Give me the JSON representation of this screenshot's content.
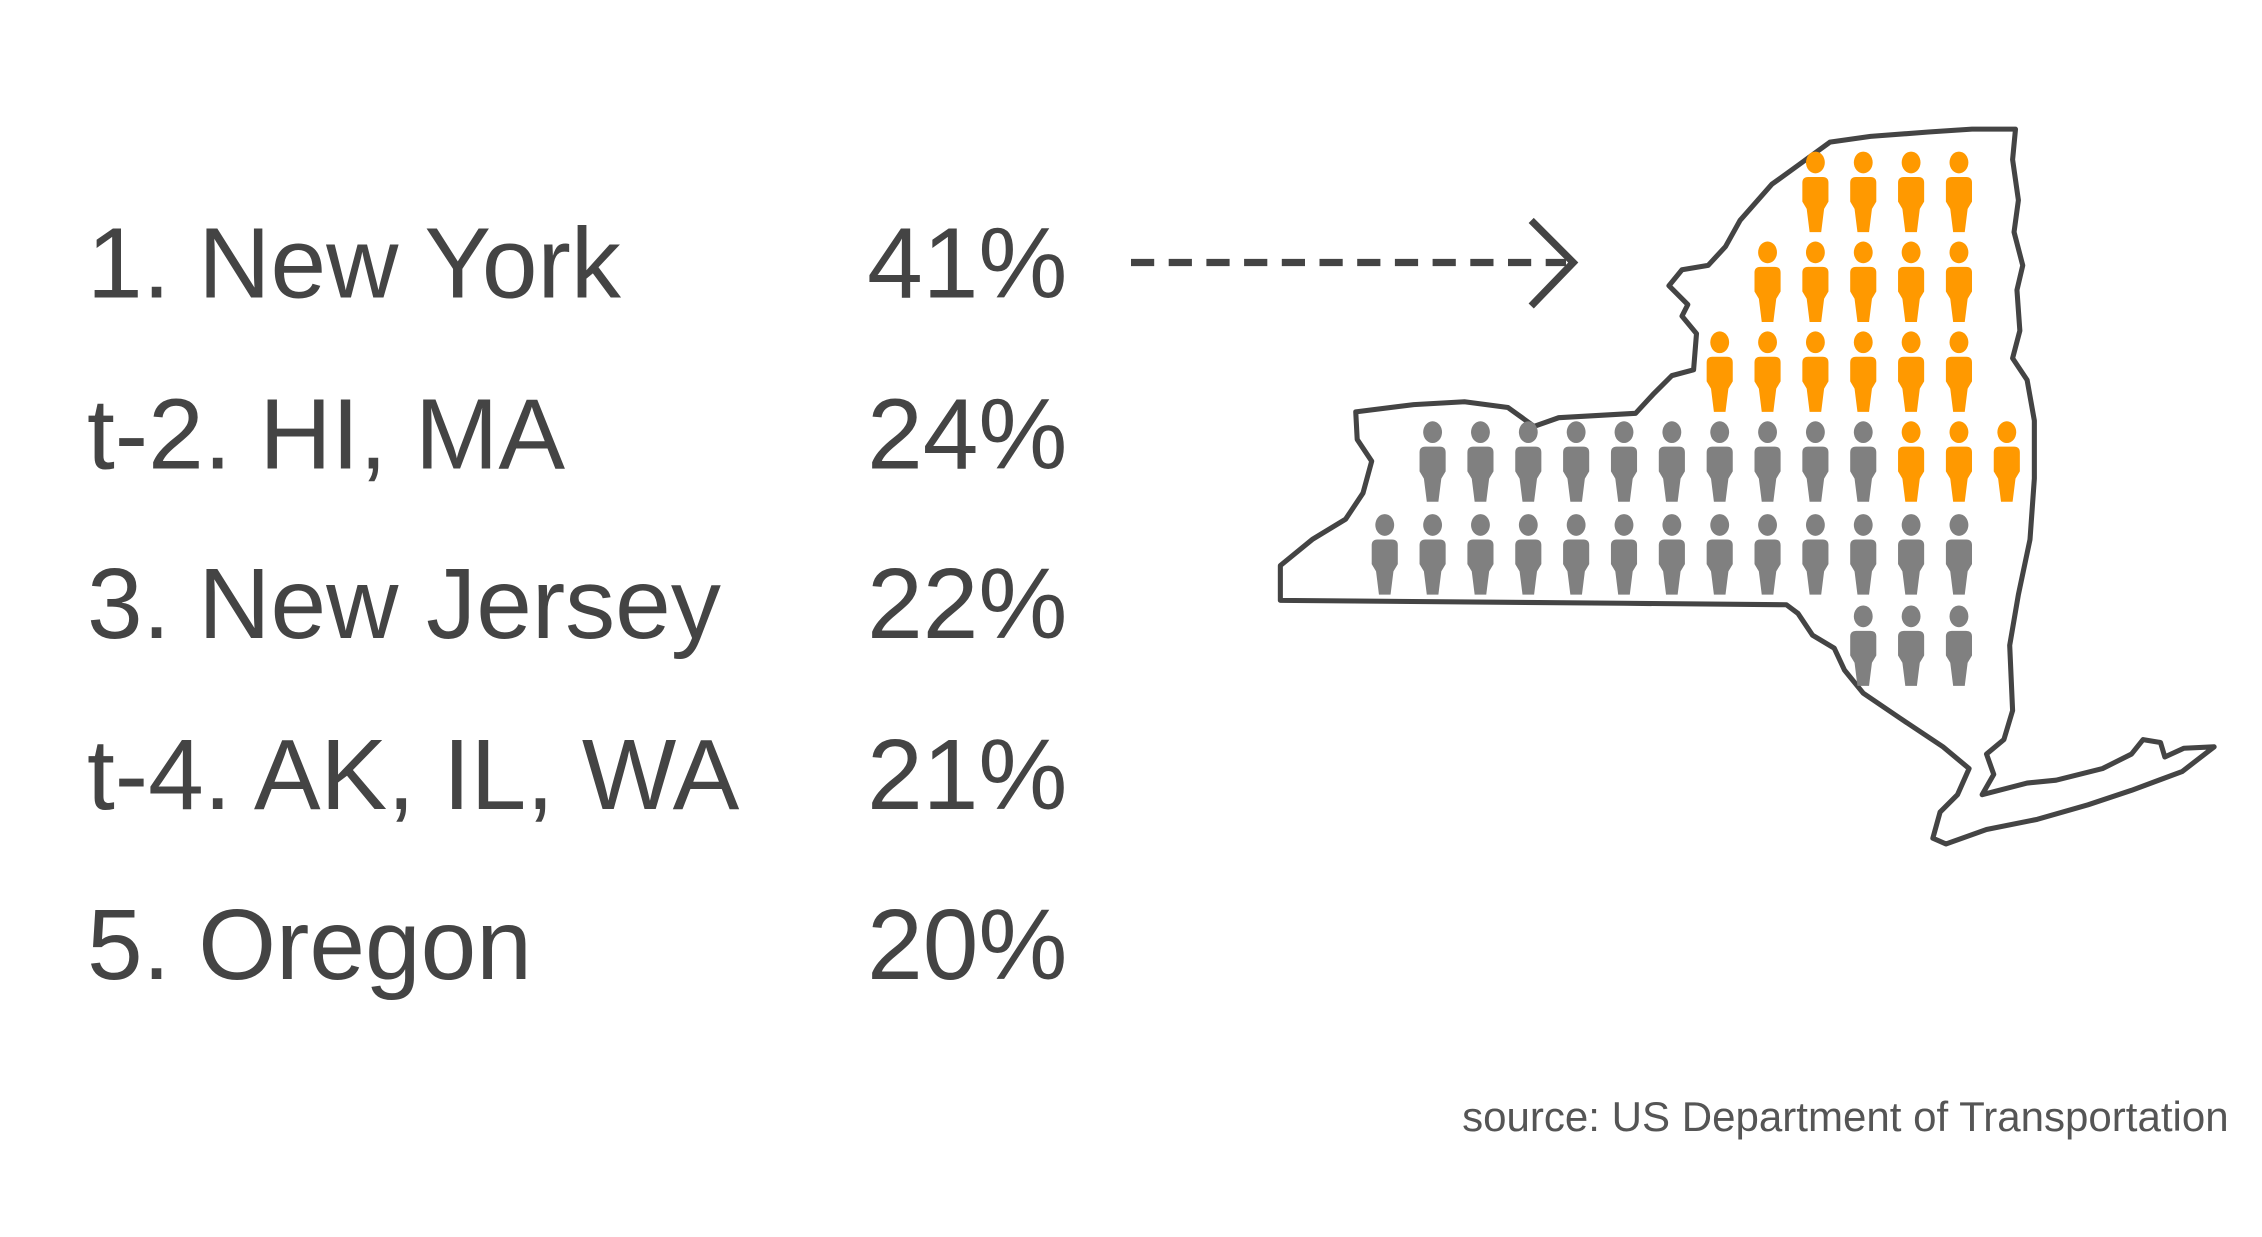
{
  "chart_data": {
    "type": "table",
    "rows": [
      {
        "rank_label": "1. New York",
        "value_label": "41%",
        "value": 41
      },
      {
        "rank_label": "t-2. HI, MA",
        "value_label": "24%",
        "value": 24
      },
      {
        "rank_label": "3. New Jersey",
        "value_label": "22%",
        "value": 22
      },
      {
        "rank_label": "t-4. AK, IL, WA",
        "value_label": "21%",
        "value": 21
      },
      {
        "rank_label": "5. Oregon",
        "value_label": "20%",
        "value": 20
      }
    ],
    "pictogram": {
      "region": "New York state outline",
      "highlighted_count": 18,
      "total_count": 44,
      "highlight_color": "#FF9900",
      "base_color": "#808080",
      "icon": "person-icon"
    },
    "source": "source: US Department of Transportation"
  },
  "colors": {
    "text": "#444444",
    "outline": "#444444"
  }
}
